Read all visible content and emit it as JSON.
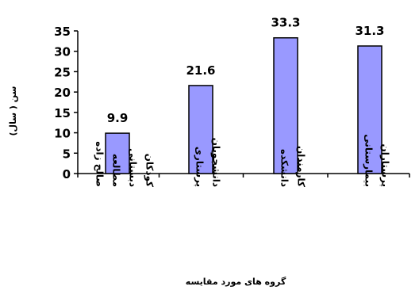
{
  "chart_data": {
    "type": "bar",
    "categories": [
      [
        "کودکان",
        "دبستانی",
        "مطالعه",
        "صالح زاده"
      ],
      [
        "دانشجویان",
        "پرستاری"
      ],
      [
        "کارمندان",
        "دانشکده"
      ],
      [
        "پرستاران",
        "بیمارستانی"
      ]
    ],
    "values": [
      9.9,
      21.6,
      33.3,
      31.3
    ],
    "value_labels": [
      "9.9",
      "21.6",
      "33.3",
      "31.3"
    ],
    "yticks": [
      "0",
      "5",
      "10",
      "15",
      "20",
      "25",
      "30",
      "35"
    ],
    "ylim": [
      0,
      35
    ],
    "ylabel": "سن ( سال)",
    "xlabel": "گروه های مورد مقایسه",
    "colors": {
      "bar_fill": "#9999ff",
      "bar_stroke": "#000000"
    },
    "grid": false,
    "legend": "none"
  }
}
